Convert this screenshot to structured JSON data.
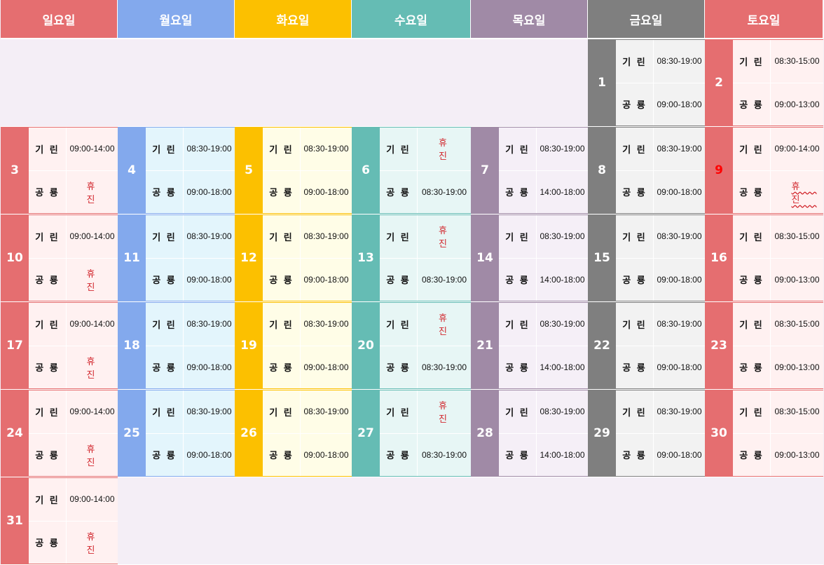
{
  "colors": {
    "sun": "#e56e70",
    "mon": "#83a9ed",
    "tue": "#fcc000",
    "wed": "#65bcb4",
    "thu": "#a08aa6",
    "fri": "#7f7f7f",
    "sat": "#e56e70",
    "sun_bg": "#fff1f1",
    "mon_bg": "#e3f5fc",
    "tue_bg": "#fffde7",
    "wed_bg": "#e7f6f5",
    "thu_bg": "#f5eff7",
    "fri_bg": "#f2f2f2",
    "sat_bg": "#fff1f1",
    "holiday_red": "#ff0000",
    "closed_red": "#d2282e"
  },
  "weekdays": [
    "일요일",
    "월요일",
    "화요일",
    "수요일",
    "목요일",
    "금요일",
    "토요일"
  ],
  "staff": [
    "기 린",
    "공 룡"
  ],
  "closed_label": "휴 진",
  "weeks": [
    [
      null,
      null,
      null,
      null,
      null,
      {
        "day": "1",
        "times": [
          "08:30-19:00",
          "09:00-18:00"
        ]
      },
      {
        "day": "2",
        "times": [
          "08:30-15:00",
          "09:00-13:00"
        ]
      }
    ],
    [
      {
        "day": "3",
        "times": [
          "09:00-14:00",
          "휴 진"
        ]
      },
      {
        "day": "4",
        "times": [
          "08:30-19:00",
          "09:00-18:00"
        ]
      },
      {
        "day": "5",
        "times": [
          "08:30-19:00",
          "09:00-18:00"
        ]
      },
      {
        "day": "6",
        "times": [
          "휴 진",
          "08:30-19:00"
        ]
      },
      {
        "day": "7",
        "times": [
          "08:30-19:00",
          "14:00-18:00"
        ]
      },
      {
        "day": "8",
        "times": [
          "08:30-19:00",
          "09:00-18:00"
        ]
      },
      {
        "day": "9",
        "holiday": true,
        "times": [
          "09:00-14:00",
          "휴 진"
        ]
      }
    ],
    [
      {
        "day": "10",
        "times": [
          "09:00-14:00",
          "휴 진"
        ]
      },
      {
        "day": "11",
        "times": [
          "08:30-19:00",
          "09:00-18:00"
        ]
      },
      {
        "day": "12",
        "times": [
          "08:30-19:00",
          "09:00-18:00"
        ]
      },
      {
        "day": "13",
        "times": [
          "휴 진",
          "08:30-19:00"
        ]
      },
      {
        "day": "14",
        "times": [
          "08:30-19:00",
          "14:00-18:00"
        ]
      },
      {
        "day": "15",
        "times": [
          "08:30-19:00",
          "09:00-18:00"
        ]
      },
      {
        "day": "16",
        "times": [
          "08:30-15:00",
          "09:00-13:00"
        ]
      }
    ],
    [
      {
        "day": "17",
        "times": [
          "09:00-14:00",
          "휴 진"
        ]
      },
      {
        "day": "18",
        "times": [
          "08:30-19:00",
          "09:00-18:00"
        ]
      },
      {
        "day": "19",
        "times": [
          "08:30-19:00",
          "09:00-18:00"
        ]
      },
      {
        "day": "20",
        "times": [
          "휴 진",
          "08:30-19:00"
        ]
      },
      {
        "day": "21",
        "times": [
          "08:30-19:00",
          "14:00-18:00"
        ]
      },
      {
        "day": "22",
        "times": [
          "08:30-19:00",
          "09:00-18:00"
        ]
      },
      {
        "day": "23",
        "times": [
          "08:30-15:00",
          "09:00-13:00"
        ]
      }
    ],
    [
      {
        "day": "24",
        "times": [
          "09:00-14:00",
          "휴 진"
        ]
      },
      {
        "day": "25",
        "times": [
          "08:30-19:00",
          "09:00-18:00"
        ]
      },
      {
        "day": "26",
        "times": [
          "08:30-19:00",
          "09:00-18:00"
        ]
      },
      {
        "day": "27",
        "times": [
          "휴 진",
          "08:30-19:00"
        ]
      },
      {
        "day": "28",
        "times": [
          "08:30-19:00",
          "14:00-18:00"
        ]
      },
      {
        "day": "29",
        "times": [
          "08:30-19:00",
          "09:00-18:00"
        ]
      },
      {
        "day": "30",
        "times": [
          "08:30-15:00",
          "09:00-13:00"
        ]
      }
    ],
    [
      {
        "day": "31",
        "times": [
          "09:00-14:00",
          "휴 진"
        ]
      },
      null,
      null,
      null,
      null,
      null,
      null
    ]
  ]
}
